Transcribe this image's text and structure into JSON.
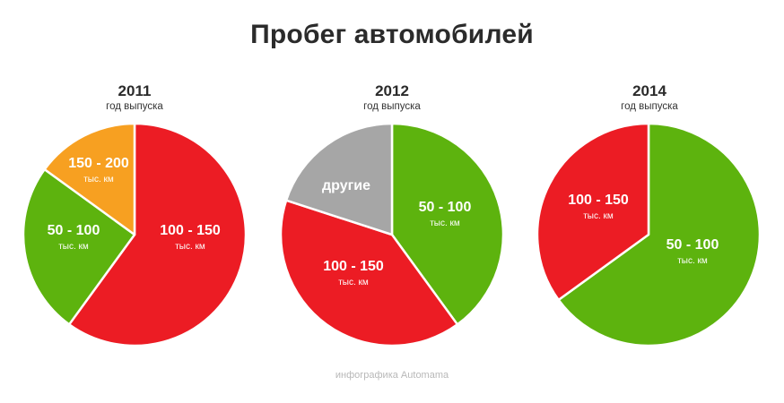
{
  "title": "Пробег автомобилей",
  "footer": "инфографика Automama",
  "colors": {
    "red": "#ec1c24",
    "green": "#5db30e",
    "orange": "#f7a021",
    "gray": "#a6a6a6"
  },
  "chart_data": [
    {
      "type": "pie",
      "title": "2011",
      "subtitle": "год выпуска",
      "slices": [
        {
          "label": "100 - 150",
          "unit": "тыс. км",
          "value": 60,
          "color": "#ec1c24"
        },
        {
          "label": "50 - 100",
          "unit": "тыс. км",
          "value": 25,
          "color": "#5db30e"
        },
        {
          "label": "150 - 200",
          "unit": "тыс. км",
          "value": 15,
          "color": "#f7a021"
        }
      ]
    },
    {
      "type": "pie",
      "title": "2012",
      "subtitle": "год выпуска",
      "slices": [
        {
          "label": "50 - 100",
          "unit": "тыс. км",
          "value": 40,
          "color": "#5db30e"
        },
        {
          "label": "100 - 150",
          "unit": "тыс. км",
          "value": 40,
          "color": "#ec1c24"
        },
        {
          "label": "другие",
          "unit": "",
          "value": 20,
          "color": "#a6a6a6"
        }
      ]
    },
    {
      "type": "pie",
      "title": "2014",
      "subtitle": "год выпуска",
      "slices": [
        {
          "label": "50 - 100",
          "unit": "тыс. км",
          "value": 65,
          "color": "#5db30e"
        },
        {
          "label": "100 - 150",
          "unit": "тыс. км",
          "value": 35,
          "color": "#ec1c24"
        }
      ]
    }
  ]
}
